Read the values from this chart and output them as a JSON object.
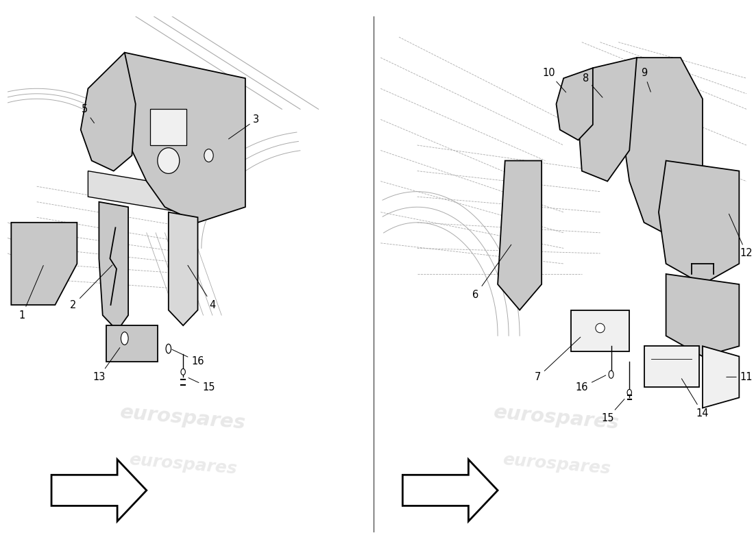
{
  "background_color": "#ffffff",
  "line_color": "#000000",
  "bg_line_color": "#aaaaaa",
  "fill_light": "#c8c8c8",
  "fill_medium": "#b8b8b8",
  "fill_white": "#f0f0f0",
  "watermark_text": "eurospares",
  "watermark_color": "#cccccc",
  "watermark_alpha": 0.45,
  "label_fontsize": 10.5,
  "divider_color": "#555555"
}
